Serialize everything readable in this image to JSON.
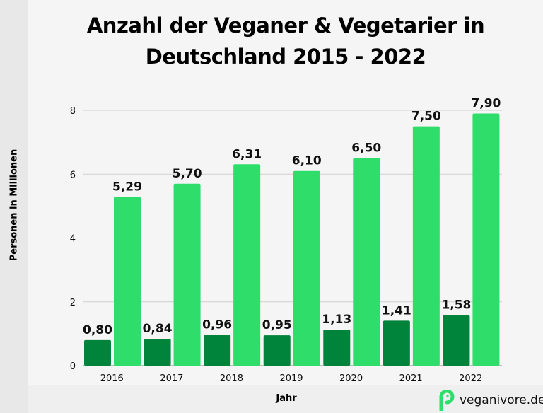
{
  "chart_data": {
    "type": "bar",
    "title": "Anzahl der Veganer & Vegetarier in Deutschland 2015 - 2022",
    "xlabel": "Jahr",
    "ylabel": "Personen in Millionen",
    "categories": [
      "2016",
      "2017",
      "2018",
      "2019",
      "2020",
      "2021",
      "2022"
    ],
    "series": [
      {
        "values": [
          0.8,
          0.84,
          0.96,
          0.95,
          1.13,
          1.41,
          1.58
        ],
        "labels": [
          "0,80",
          "0,84",
          "0,96",
          "0,95",
          "1,13",
          "1,41",
          "1,58"
        ],
        "color": "#00833a"
      },
      {
        "values": [
          5.29,
          5.7,
          6.31,
          6.1,
          6.5,
          7.5,
          7.9
        ],
        "labels": [
          "5,29",
          "5,70",
          "6,31",
          "6,10",
          "6,50",
          "7,50",
          "7,90"
        ],
        "color": "#2fdd6a"
      }
    ],
    "ylim": [
      0,
      8
    ],
    "yticks": [
      "0",
      "2",
      "4",
      "6",
      "8"
    ],
    "grid": true
  },
  "logo": {
    "text": "veganivore.de",
    "color": "#2fdd6a"
  }
}
